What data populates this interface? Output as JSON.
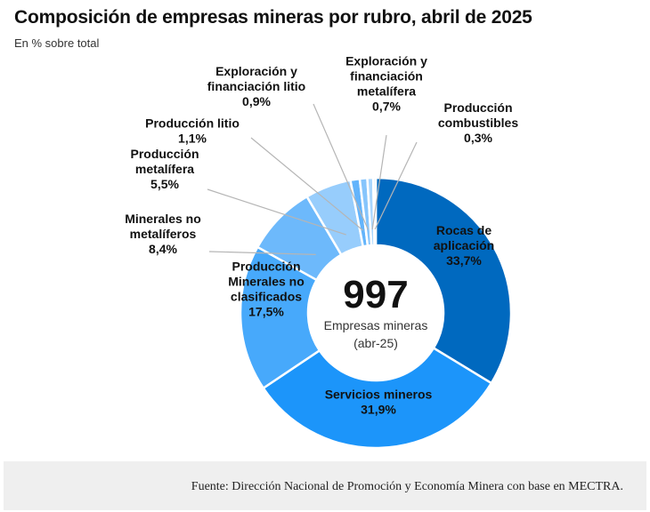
{
  "header": {
    "title": "Composición de empresas mineras por rubro, abril de 2025",
    "subtitle": "En % sobre total"
  },
  "center": {
    "total": "997",
    "label_line1": "Empresas mineras",
    "label_line2": "(abr-25)"
  },
  "footer": {
    "source": "Fuente: Dirección Nacional de Promoción y Economía Minera con base en MECTRA."
  },
  "chart_data": {
    "type": "pie",
    "donut": true,
    "title": "Composición de empresas mineras por rubro, abril de 2025",
    "subtitle": "En % sobre total",
    "unit": "%",
    "center_value": 997,
    "slices": [
      {
        "name": "Rocas de aplicación",
        "lines": [
          "Rocas de",
          "aplicación"
        ],
        "pct_label": "33,7%",
        "value": 33.7,
        "color": "#0069bf"
      },
      {
        "name": "Servicios mineros",
        "lines": [
          "Servicios mineros"
        ],
        "pct_label": "31,9%",
        "value": 31.9,
        "color": "#1c95fa"
      },
      {
        "name": "Producción Minerales no clasificados",
        "lines": [
          "Producción",
          "Minerales no",
          "clasificados"
        ],
        "pct_label": "17,5%",
        "value": 17.5,
        "color": "#47a9fb"
      },
      {
        "name": "Minerales no metalíferos",
        "lines": [
          "Minerales no",
          "metalíferos"
        ],
        "pct_label": "8,4%",
        "value": 8.4,
        "color": "#6db9fb"
      },
      {
        "name": "Producción metalífera",
        "lines": [
          "Producción",
          "metalífera"
        ],
        "pct_label": "5,5%",
        "value": 5.5,
        "color": "#97cdfc"
      },
      {
        "name": "Producción litio",
        "lines": [
          "Producción litio"
        ],
        "pct_label": "1,1%",
        "value": 1.1,
        "color": "#63b4fb"
      },
      {
        "name": "Exploración y financiación litio",
        "lines": [
          "Exploración y",
          "financiación litio"
        ],
        "pct_label": "0,9%",
        "value": 0.9,
        "color": "#86c5fc"
      },
      {
        "name": "Exploración y financiación metalífera",
        "lines": [
          "Exploración y",
          "financiación",
          "metalífera"
        ],
        "pct_label": "0,7%",
        "value": 0.7,
        "color": "#a9d6fd"
      },
      {
        "name": "Producción combustibles",
        "lines": [
          "Producción",
          "combustibles"
        ],
        "pct_label": "0,3%",
        "value": 0.3,
        "color": "#c9e5fe"
      }
    ]
  }
}
